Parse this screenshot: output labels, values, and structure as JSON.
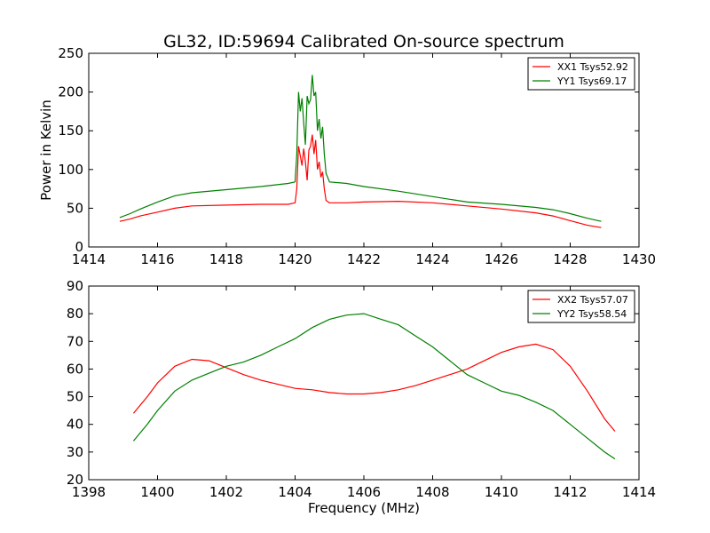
{
  "chart_data": [
    {
      "type": "line",
      "title": "GL32, ID:59694 Calibrated On-source spectrum",
      "xlabel": "",
      "ylabel": "Power in Kelvin",
      "xlim": [
        1414,
        1430
      ],
      "ylim": [
        0,
        250
      ],
      "xticks": [
        "1414",
        "1416",
        "1418",
        "1420",
        "1422",
        "1424",
        "1426",
        "1428",
        "1430"
      ],
      "yticks": [
        "0",
        "50",
        "100",
        "150",
        "200",
        "250"
      ],
      "grid": false,
      "legend_position": "top-right",
      "colors": {
        "XX1 Tsys52.92": "#ff0000",
        "YY1 Tsys69.17": "#008000"
      },
      "series": [
        {
          "name": "XX1 Tsys52.92",
          "color": "#ff0000",
          "x": [
            1414.9,
            1415.2,
            1415.5,
            1416.0,
            1416.5,
            1417.0,
            1418.0,
            1419.0,
            1419.8,
            1420.0,
            1420.05,
            1420.1,
            1420.2,
            1420.25,
            1420.3,
            1420.35,
            1420.4,
            1420.45,
            1420.5,
            1420.55,
            1420.6,
            1420.65,
            1420.7,
            1420.75,
            1420.8,
            1420.85,
            1420.9,
            1421.0,
            1421.5,
            1422.0,
            1423.0,
            1424.0,
            1425.0,
            1426.0,
            1427.0,
            1427.5,
            1428.0,
            1428.5,
            1428.9
          ],
          "y": [
            33,
            36,
            40,
            45,
            50,
            53,
            54,
            55,
            55,
            57,
            75,
            130,
            105,
            127,
            110,
            86,
            125,
            130,
            145,
            120,
            138,
            100,
            110,
            90,
            97,
            75,
            60,
            57,
            57,
            58,
            59,
            57,
            53,
            49,
            44,
            40,
            34,
            28,
            25
          ]
        },
        {
          "name": "YY1 Tsys69.17",
          "color": "#008000",
          "x": [
            1414.9,
            1415.2,
            1415.5,
            1416.0,
            1416.5,
            1417.0,
            1418.0,
            1419.0,
            1419.8,
            1420.0,
            1420.05,
            1420.1,
            1420.15,
            1420.2,
            1420.25,
            1420.3,
            1420.35,
            1420.4,
            1420.45,
            1420.5,
            1420.55,
            1420.6,
            1420.65,
            1420.7,
            1420.75,
            1420.8,
            1420.85,
            1420.9,
            1421.0,
            1421.5,
            1422.0,
            1423.0,
            1424.0,
            1425.0,
            1426.0,
            1427.0,
            1427.5,
            1428.0,
            1428.5,
            1428.9
          ],
          "y": [
            38,
            43,
            49,
            58,
            66,
            70,
            74,
            78,
            82,
            84,
            120,
            200,
            175,
            192,
            160,
            132,
            195,
            185,
            190,
            222,
            195,
            200,
            150,
            165,
            140,
            155,
            120,
            95,
            84,
            82,
            78,
            72,
            65,
            58,
            55,
            51,
            48,
            43,
            37,
            33
          ]
        }
      ]
    },
    {
      "type": "line",
      "title": "",
      "xlabel": "Frequency (MHz)",
      "ylabel": "",
      "xlim": [
        1398,
        1414
      ],
      "ylim": [
        20,
        90
      ],
      "xticks": [
        "1398",
        "1400",
        "1402",
        "1404",
        "1406",
        "1408",
        "1410",
        "1412",
        "1414"
      ],
      "yticks": [
        "20",
        "30",
        "40",
        "50",
        "60",
        "70",
        "80",
        "90"
      ],
      "grid": false,
      "legend_position": "top-right",
      "colors": {
        "XX2 Tsys57.07": "#ff0000",
        "YY2 Tsys58.54": "#008000"
      },
      "series": [
        {
          "name": "XX2 Tsys57.07",
          "color": "#ff0000",
          "x": [
            1399.3,
            1399.7,
            1400.0,
            1400.5,
            1401.0,
            1401.5,
            1402.0,
            1402.5,
            1403.0,
            1403.5,
            1404.0,
            1404.5,
            1405.0,
            1405.5,
            1406.0,
            1406.5,
            1407.0,
            1407.5,
            1408.0,
            1408.5,
            1409.0,
            1409.5,
            1410.0,
            1410.5,
            1411.0,
            1411.5,
            1412.0,
            1412.5,
            1413.0,
            1413.3
          ],
          "y": [
            44,
            50,
            55,
            61,
            63.5,
            63,
            60.5,
            58,
            56,
            54.5,
            53,
            52.5,
            51.5,
            51,
            51,
            51.5,
            52.5,
            54,
            56,
            58,
            60,
            63,
            66,
            68,
            69,
            67,
            61,
            52,
            42,
            37.5
          ]
        },
        {
          "name": "YY2 Tsys58.54",
          "color": "#008000",
          "x": [
            1399.3,
            1399.7,
            1400.0,
            1400.5,
            1401.0,
            1401.5,
            1402.0,
            1402.5,
            1403.0,
            1403.5,
            1404.0,
            1404.5,
            1405.0,
            1405.5,
            1406.0,
            1406.5,
            1407.0,
            1407.5,
            1408.0,
            1408.5,
            1409.0,
            1409.5,
            1410.0,
            1410.5,
            1411.0,
            1411.5,
            1412.0,
            1412.5,
            1413.0,
            1413.3
          ],
          "y": [
            34,
            40,
            45,
            52,
            56,
            58.5,
            61,
            62.5,
            65,
            68,
            71,
            75,
            78,
            79.5,
            80,
            78,
            76,
            72,
            68,
            63,
            58,
            55,
            52,
            50.5,
            48,
            45,
            40,
            35,
            30,
            27.5
          ]
        }
      ]
    }
  ]
}
